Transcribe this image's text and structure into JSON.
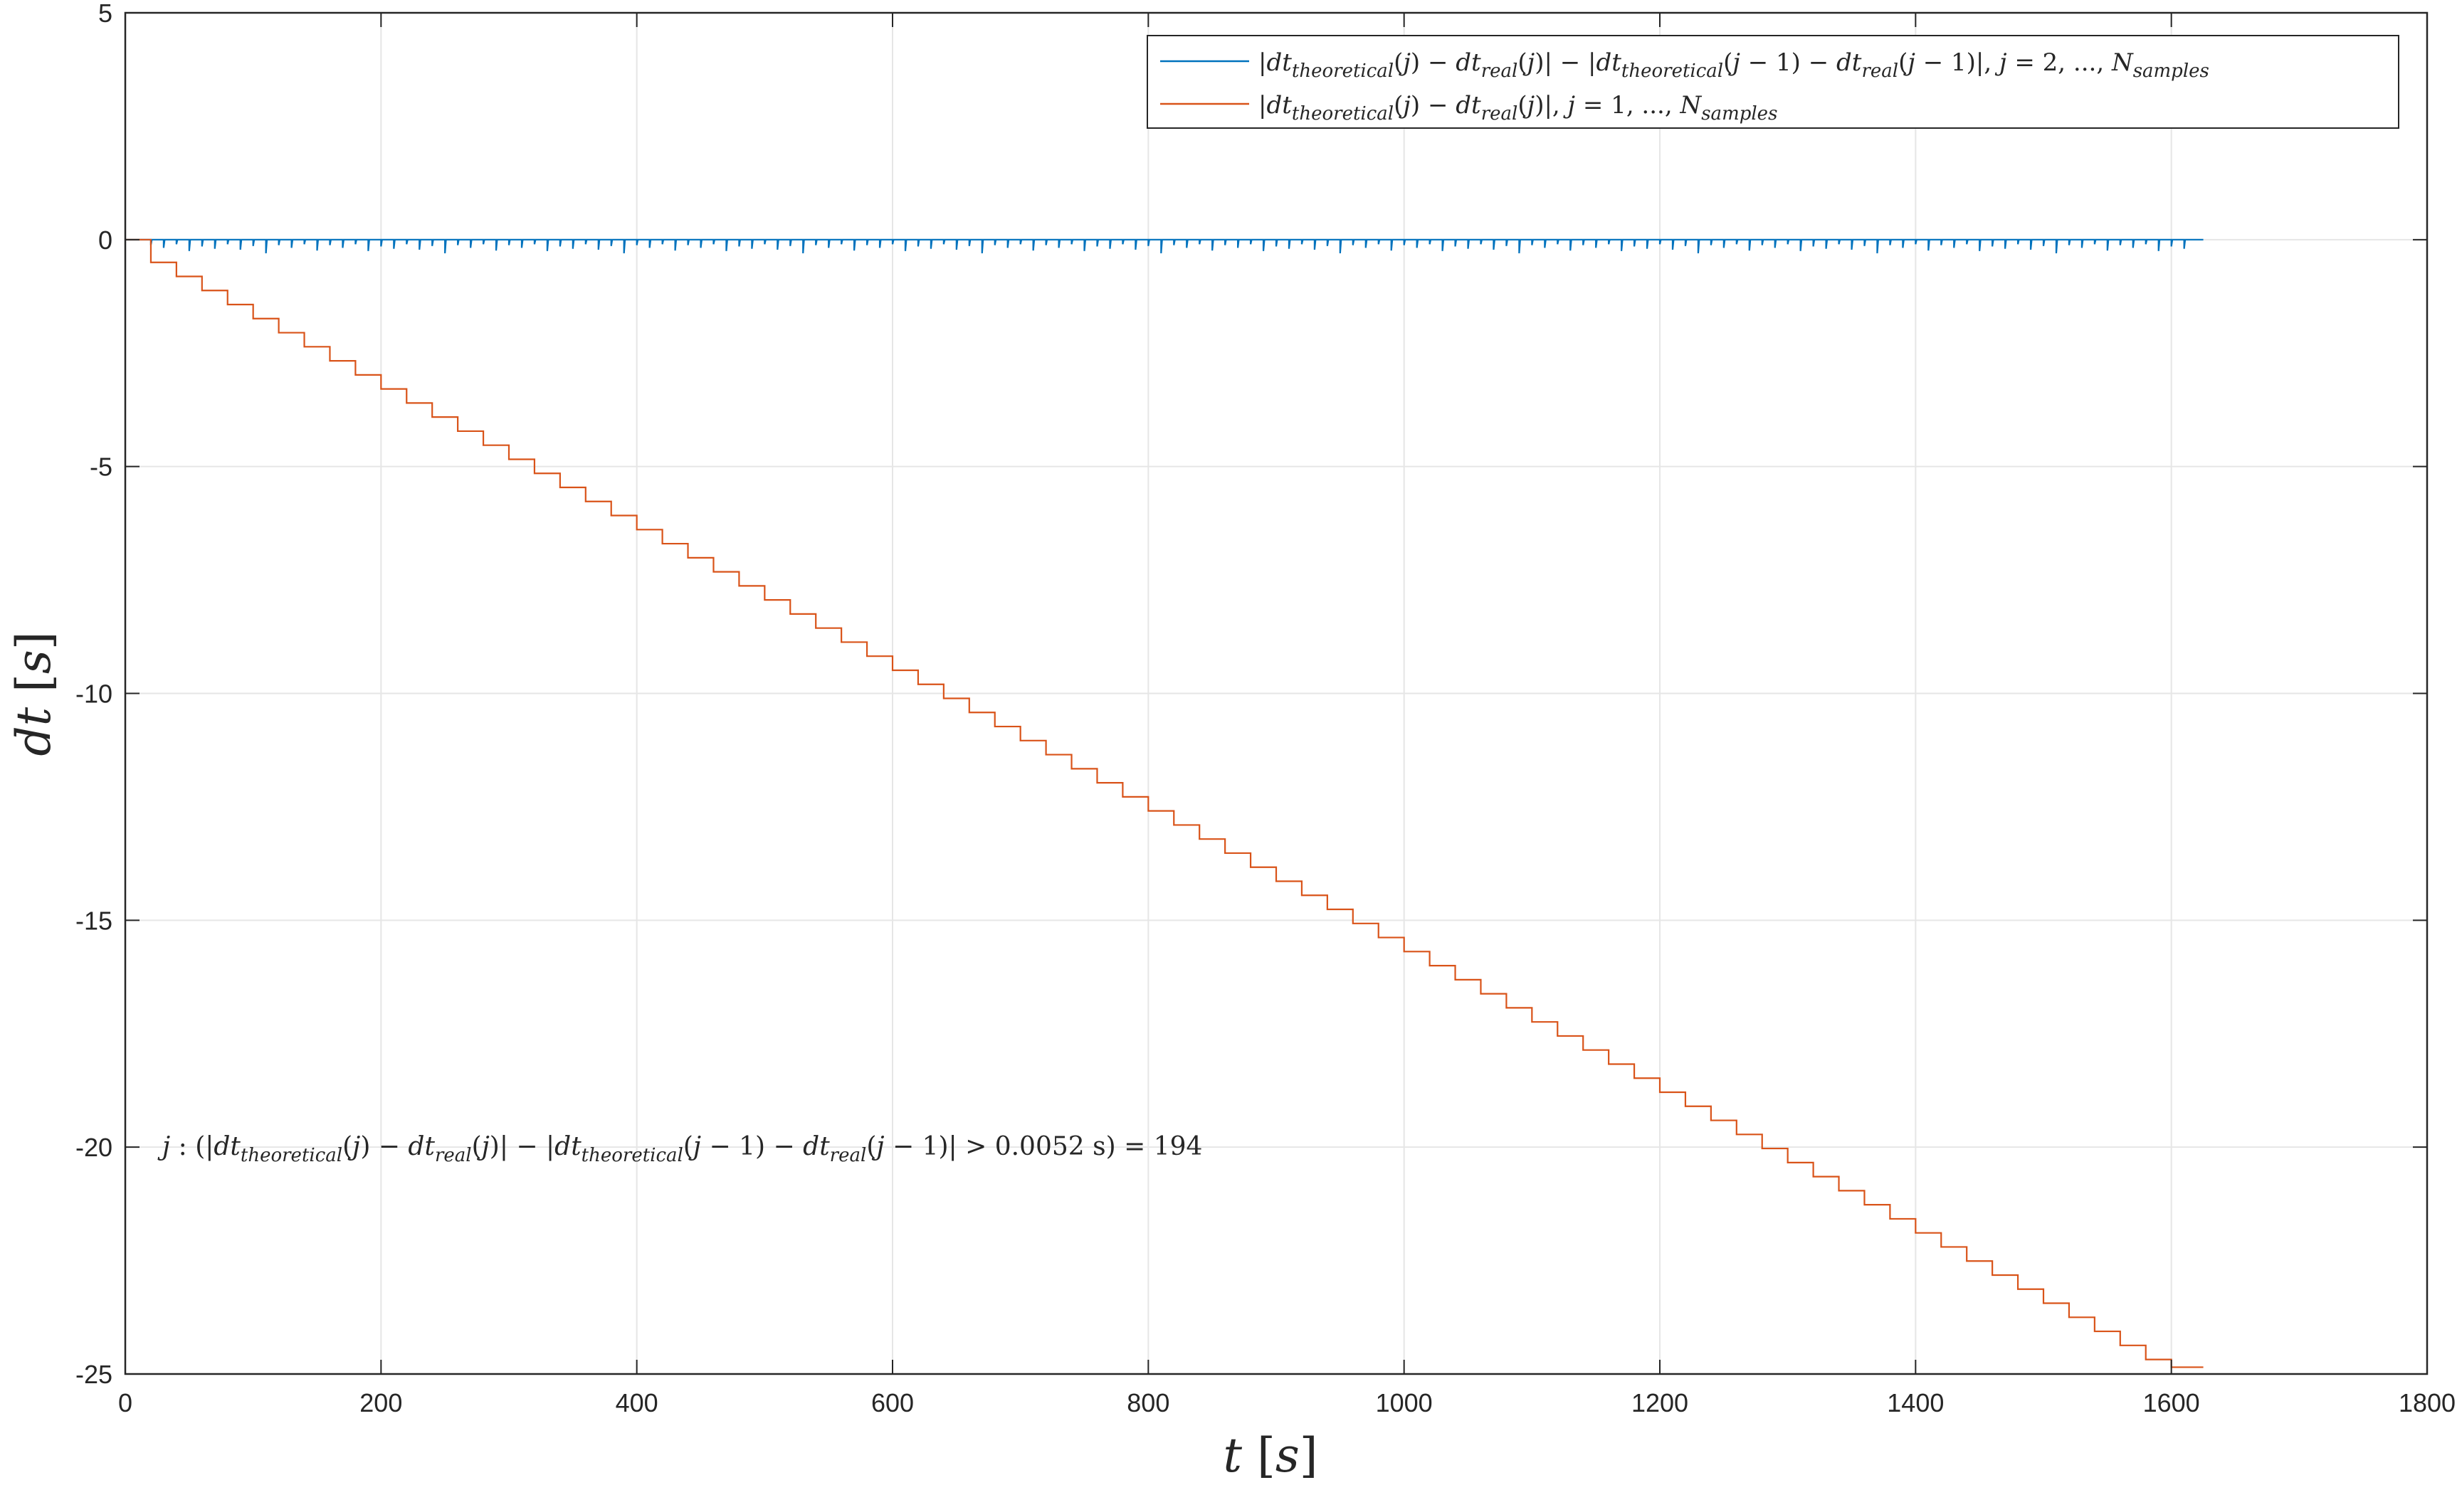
{
  "chart_data": {
    "type": "line",
    "xlabel": "t [s]",
    "ylabel": "dt [s]",
    "xlim": [
      0,
      1800
    ],
    "ylim": [
      -25,
      5
    ],
    "xticks": [
      0,
      200,
      400,
      600,
      800,
      1000,
      1200,
      1400,
      1600,
      1800
    ],
    "yticks": [
      5,
      0,
      -5,
      -10,
      -15,
      -20,
      -25
    ],
    "grid": true,
    "legend_position": "top-right",
    "colors": {
      "series1": "#0072BD",
      "series2": "#D95319",
      "grid": "#e6e6e6",
      "axis": "#262626"
    },
    "series": [
      {
        "name": "|dt_theoretical(j) − dt_real(j)| − |dt_theoretical(j − 1) − dt_real(j − 1)|, j = 2, ..., N_samples",
        "type": "spike-train",
        "x_range": [
          0,
          1625
        ],
        "baseline": 0,
        "spike_x_start": 20,
        "spike_x_end": 1610,
        "spike_interval": 10,
        "spike_depths": [
          0.12,
          0.18,
          0.1,
          0.25,
          0.15,
          0.2,
          0.1,
          0.22,
          0.14,
          0.3,
          0.12,
          0.18,
          0.1,
          0.24
        ]
      },
      {
        "name": "|dt_theoretical(j) − dt_real(j)|, j = 1, ..., N_samples",
        "type": "staircase",
        "start": [
          0,
          0
        ],
        "end": [
          1625,
          -24.85
        ],
        "step_interval": 20,
        "step_size": 0.31,
        "first_step": [
          20,
          -0.5
        ]
      }
    ],
    "annotation": {
      "text": "j : (|dt_theoretical(j) − dt_real(j)| − |dt_theoretical(j − 1) − dt_real(j − 1)| > 0.0052 s) = 194",
      "threshold": 0.0052,
      "count": 194,
      "at": [
        30,
        -20
      ]
    }
  }
}
